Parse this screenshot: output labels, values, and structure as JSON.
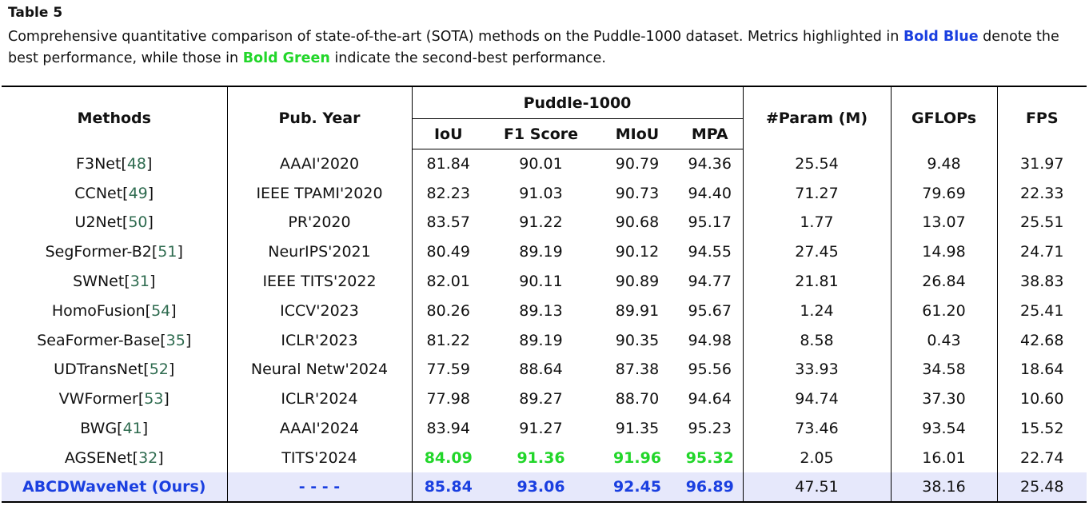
{
  "caption": {
    "label": "Table 5",
    "text_part1": "Comprehensive quantitative comparison of state-of-the-art (SOTA) methods on the Puddle-1000 dataset. Metrics highlighted in ",
    "bold_blue": "Bold Blue",
    "text_part2": " denote the best performance, while those in ",
    "bold_green": "Bold Green",
    "text_part3": " indicate the second-best performance."
  },
  "header": {
    "methods": "Methods",
    "pub_year": "Pub. Year",
    "dataset": "Puddle-1000",
    "iou": "IoU",
    "f1": "F1 Score",
    "miou": "MIoU",
    "mpa": "MPA",
    "params": "#Param (M)",
    "gflops": "GFLOPs",
    "fps": "FPS"
  },
  "rows": [
    {
      "name": "F3Net",
      "ref": "48",
      "year": "AAAI'2020",
      "iou": "81.84",
      "f1": "90.01",
      "miou": "90.79",
      "mpa": "94.36",
      "params": "25.54",
      "gflops": "9.48",
      "fps": "31.97"
    },
    {
      "name": "CCNet",
      "ref": "49",
      "year": "IEEE TPAMI'2020",
      "iou": "82.23",
      "f1": "91.03",
      "miou": "90.73",
      "mpa": "94.40",
      "params": "71.27",
      "gflops": "79.69",
      "fps": "22.33"
    },
    {
      "name": "U2Net",
      "ref": "50",
      "year": "PR'2020",
      "iou": "83.57",
      "f1": "91.22",
      "miou": "90.68",
      "mpa": "95.17",
      "params": "1.77",
      "gflops": "13.07",
      "fps": "25.51"
    },
    {
      "name": "SegFormer-B2",
      "ref": "51",
      "year": "NeurIPS'2021",
      "iou": "80.49",
      "f1": "89.19",
      "miou": "90.12",
      "mpa": "94.55",
      "params": "27.45",
      "gflops": "14.98",
      "fps": "24.71"
    },
    {
      "name": "SWNet",
      "ref": "31",
      "year": "IEEE TITS'2022",
      "iou": "82.01",
      "f1": "90.11",
      "miou": "90.89",
      "mpa": "94.77",
      "params": "21.81",
      "gflops": "26.84",
      "fps": "38.83"
    },
    {
      "name": "HomoFusion",
      "ref": "54",
      "year": "ICCV'2023",
      "iou": "80.26",
      "f1": "89.13",
      "miou": "89.91",
      "mpa": "95.67",
      "params": "1.24",
      "gflops": "61.20",
      "fps": "25.41"
    },
    {
      "name": "SeaFormer-Base",
      "ref": "35",
      "year": "ICLR'2023",
      "iou": "81.22",
      "f1": "89.19",
      "miou": "90.35",
      "mpa": "94.98",
      "params": "8.58",
      "gflops": "0.43",
      "fps": "42.68"
    },
    {
      "name": "UDTransNet",
      "ref": "52",
      "year": "Neural Netw'2024",
      "iou": "77.59",
      "f1": "88.64",
      "miou": "87.38",
      "mpa": "95.56",
      "params": "33.93",
      "gflops": "34.58",
      "fps": "18.64"
    },
    {
      "name": "VWFormer",
      "ref": "53",
      "year": "ICLR'2024",
      "iou": "77.98",
      "f1": "89.27",
      "miou": "88.70",
      "mpa": "94.64",
      "params": "94.74",
      "gflops": "37.30",
      "fps": "10.60"
    },
    {
      "name": "BWG",
      "ref": "41",
      "year": "AAAI'2024",
      "iou": "83.94",
      "f1": "91.27",
      "miou": "91.35",
      "mpa": "95.23",
      "params": "73.46",
      "gflops": "93.54",
      "fps": "15.52"
    },
    {
      "name": "AGSENet",
      "ref": "32",
      "year": "TITS'2024",
      "iou": "84.09",
      "f1": "91.36",
      "miou": "91.96",
      "mpa": "95.32",
      "params": "2.05",
      "gflops": "16.01",
      "fps": "22.74"
    }
  ],
  "ours": {
    "name": "ABCDWaveNet (Ours)",
    "year": "- - - -",
    "iou": "85.84",
    "f1": "93.06",
    "miou": "92.45",
    "mpa": "96.89",
    "params": "47.51",
    "gflops": "38.16",
    "fps": "25.48"
  },
  "colors": {
    "best": "#1a3fe0",
    "second": "#22d62a",
    "ours_row_bg": "#e6e8fb"
  }
}
